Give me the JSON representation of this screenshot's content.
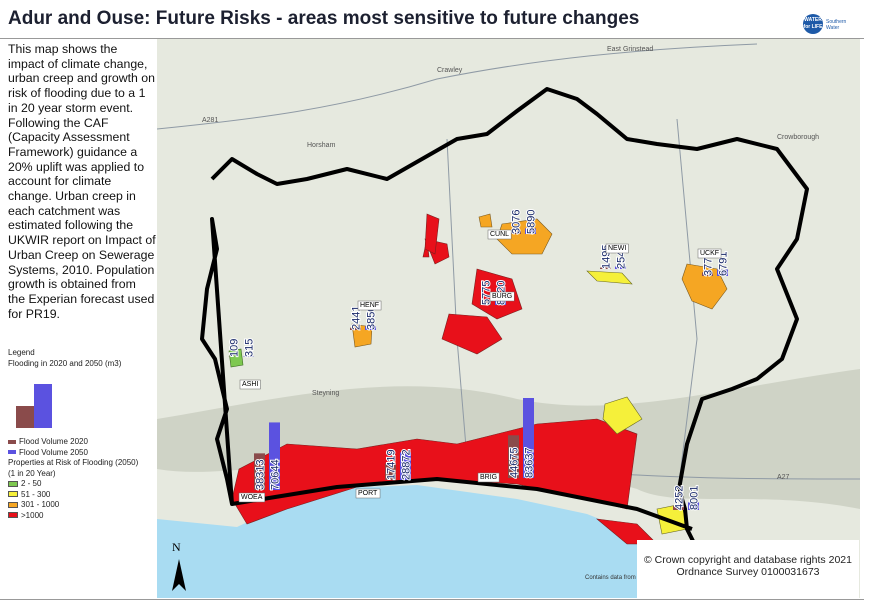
{
  "header": {
    "title": "Adur and Ouse: Future Risks - areas most sensitive to future changes",
    "logo_text": "WATER for LIFE",
    "logo_brand": "Southern Water"
  },
  "description": "This map shows the impact of climate change, urban creep and growth on risk of flooding due to a 1 in 20 year storm event. Following the CAF (Capacity Assessment Framework) guidance a 20% uplift was applied to account for climate change. Urban creep in each catchment was estimated following the UKWIR report on Impact of Urban Creep on Sewerage Systems, 2010. Population growth is obtained from the Experian forecast used for PR19.",
  "legend": {
    "title": "Legend",
    "subtitle": "Flooding in 2020 and 2050 (m3)",
    "flood_2020": "Flood Volume 2020",
    "flood_2050": "Flood Volume 2050",
    "properties_title": "Properties at Risk of Flooding (2050)",
    "properties_subtitle": "(1 in 20 Year)",
    "classes": [
      {
        "label": "2 - 50",
        "color": "#7ec850"
      },
      {
        "label": "51 - 300",
        "color": "#f5f03a"
      },
      {
        "label": "301 - 1000",
        "color": "#f5a623"
      },
      {
        "label": ">1000",
        "color": "#e8101a"
      }
    ],
    "color_2020": "#8a4b4b",
    "color_2050": "#5b52e0"
  },
  "places": [
    "East Grinstead",
    "Crawley",
    "Horsham",
    "Crowborough",
    "Steyning",
    "A281",
    "A27"
  ],
  "sites": [
    {
      "code": "CUNL",
      "v2020": 3076,
      "v2050": 5890
    },
    {
      "code": "NEWI",
      "v2020": 1495,
      "v2050": 2543
    },
    {
      "code": "UCKF",
      "v2020": 3777,
      "v2050": 6791
    },
    {
      "code": "HENF",
      "v2020": 2441,
      "v2050": 3850
    },
    {
      "code": "BURG",
      "v2020": 5775,
      "v2050": 8920
    },
    {
      "code": "ASHI",
      "v2020": 109,
      "v2050": 315
    },
    {
      "code": "WOEA",
      "v2020": 38313,
      "v2050": 70644
    },
    {
      "code": "PORT",
      "v2020": 17419,
      "v2050": 28872
    },
    {
      "code": "BRIG",
      "v2020": 44675,
      "v2050": 83637
    },
    {
      "v2020": 4252,
      "v2050": 8001
    }
  ],
  "north": "N",
  "data_note": "Contains data from",
  "copyright": [
    "© Crown copyright and database rights 2021",
    "Ordnance Survey 0100031673"
  ]
}
